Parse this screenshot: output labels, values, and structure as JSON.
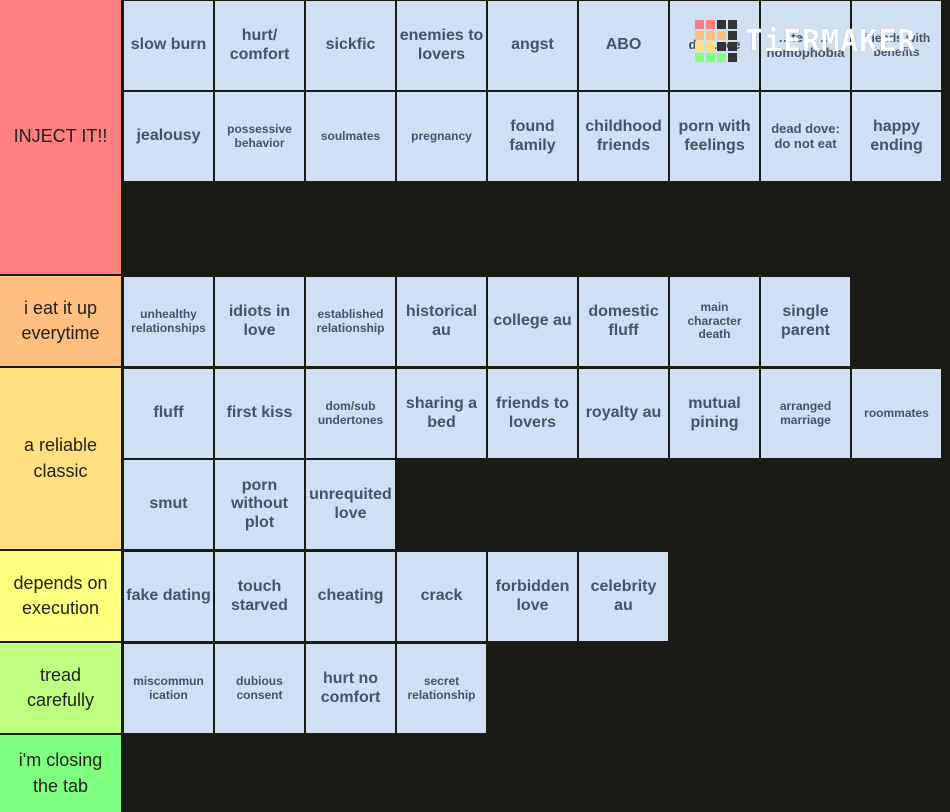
{
  "logo": {
    "text": "TiERMAKER"
  },
  "colors": {
    "tier_s": "#ff7f7f",
    "tier_a": "#ffbf7f",
    "tier_b": "#ffdf80",
    "tier_c": "#ffff7f",
    "tier_d": "#bfff7f",
    "tier_e": "#7fff7f",
    "item_bg": "#cfe0f2",
    "item_text": "#46536a",
    "background": "#1a1a17"
  },
  "tiers": [
    {
      "label": "INJECT IT!!",
      "items": [
        "slow burn",
        "hurt/ comfort",
        "sickfic",
        "enemies to lovers",
        "angst",
        "ABO",
        "d… …ce",
        "…te… … homophobia",
        "friends with benefits",
        "jealousy",
        "possessive behavior",
        "soulmates",
        "pregnancy",
        "found family",
        "childhood friends",
        "porn with feelings",
        "dead dove: do not eat",
        "happy ending"
      ]
    },
    {
      "label": "i eat it up everytime",
      "items": [
        "unhealthy relationships",
        "idiots in love",
        "established relationship",
        "historical au",
        "college au",
        "domestic fluff",
        "main character death",
        "single parent"
      ]
    },
    {
      "label": "a reliable classic",
      "items": [
        "fluff",
        "first kiss",
        "dom/sub undertones",
        "sharing a bed",
        "friends to lovers",
        "royalty au",
        "mutual pining",
        "arranged marriage",
        "roommates",
        "smut",
        "porn without plot",
        "unrequited love"
      ]
    },
    {
      "label": "depends on execution",
      "items": [
        "fake dating",
        "touch starved",
        "cheating",
        "crack",
        "forbidden love",
        "celebrity au"
      ]
    },
    {
      "label": "tread carefully",
      "items": [
        "miscommun ication",
        "dubious consent",
        "hurt no comfort",
        "secret relationship"
      ]
    },
    {
      "label": "i'm closing the tab",
      "items": []
    }
  ]
}
